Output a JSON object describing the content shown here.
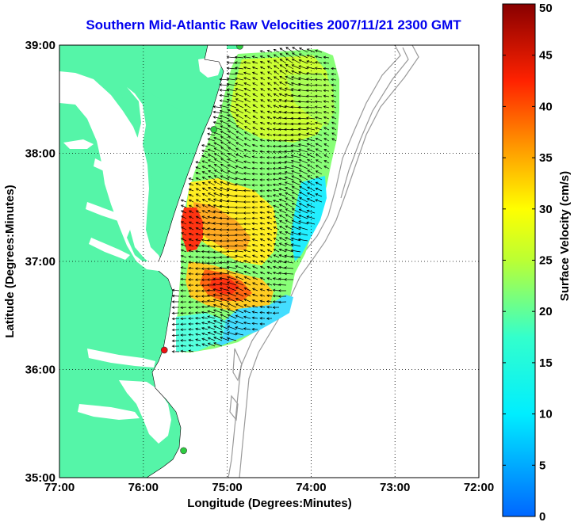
{
  "title": "Southern Mid-Atlantic Raw Velocities 2007/11/21 2300 GMT",
  "map": {
    "xlabel": "Longitude (Degrees:Minutes)",
    "ylabel": "Latitude (Degrees:Minutes)",
    "lon_ticks": [
      "77:00",
      "76:00",
      "75:00",
      "74:00",
      "73:00",
      "72:00"
    ],
    "lat_ticks": [
      "39:00",
      "38:00",
      "37:00",
      "36:00",
      "35:00"
    ],
    "lon_range_west": [
      77,
      72
    ],
    "lat_range": [
      35,
      39
    ],
    "grid": true
  },
  "colorbar": {
    "label": "Surface Velocity (cm/s)",
    "ticks": [
      "0",
      "5",
      "10",
      "15",
      "20",
      "25",
      "30",
      "35",
      "40",
      "45",
      "50"
    ],
    "min": 0,
    "max": 50,
    "colormap": "jet"
  },
  "stations": [
    {
      "lon": 74.85,
      "lat": 38.99,
      "color": "#2ecc40"
    },
    {
      "lon": 75.16,
      "lat": 38.22,
      "color": "#2ecc40"
    },
    {
      "lon": 75.75,
      "lat": 36.18,
      "color": "#ee1111"
    },
    {
      "lon": 75.52,
      "lat": 35.25,
      "color": "#2ecc40"
    }
  ],
  "colors": {
    "land": "#55f5a8",
    "water": "#ffffff",
    "bathymetry": "#999999",
    "title": "#0000ee",
    "arrows": "#000000"
  }
}
